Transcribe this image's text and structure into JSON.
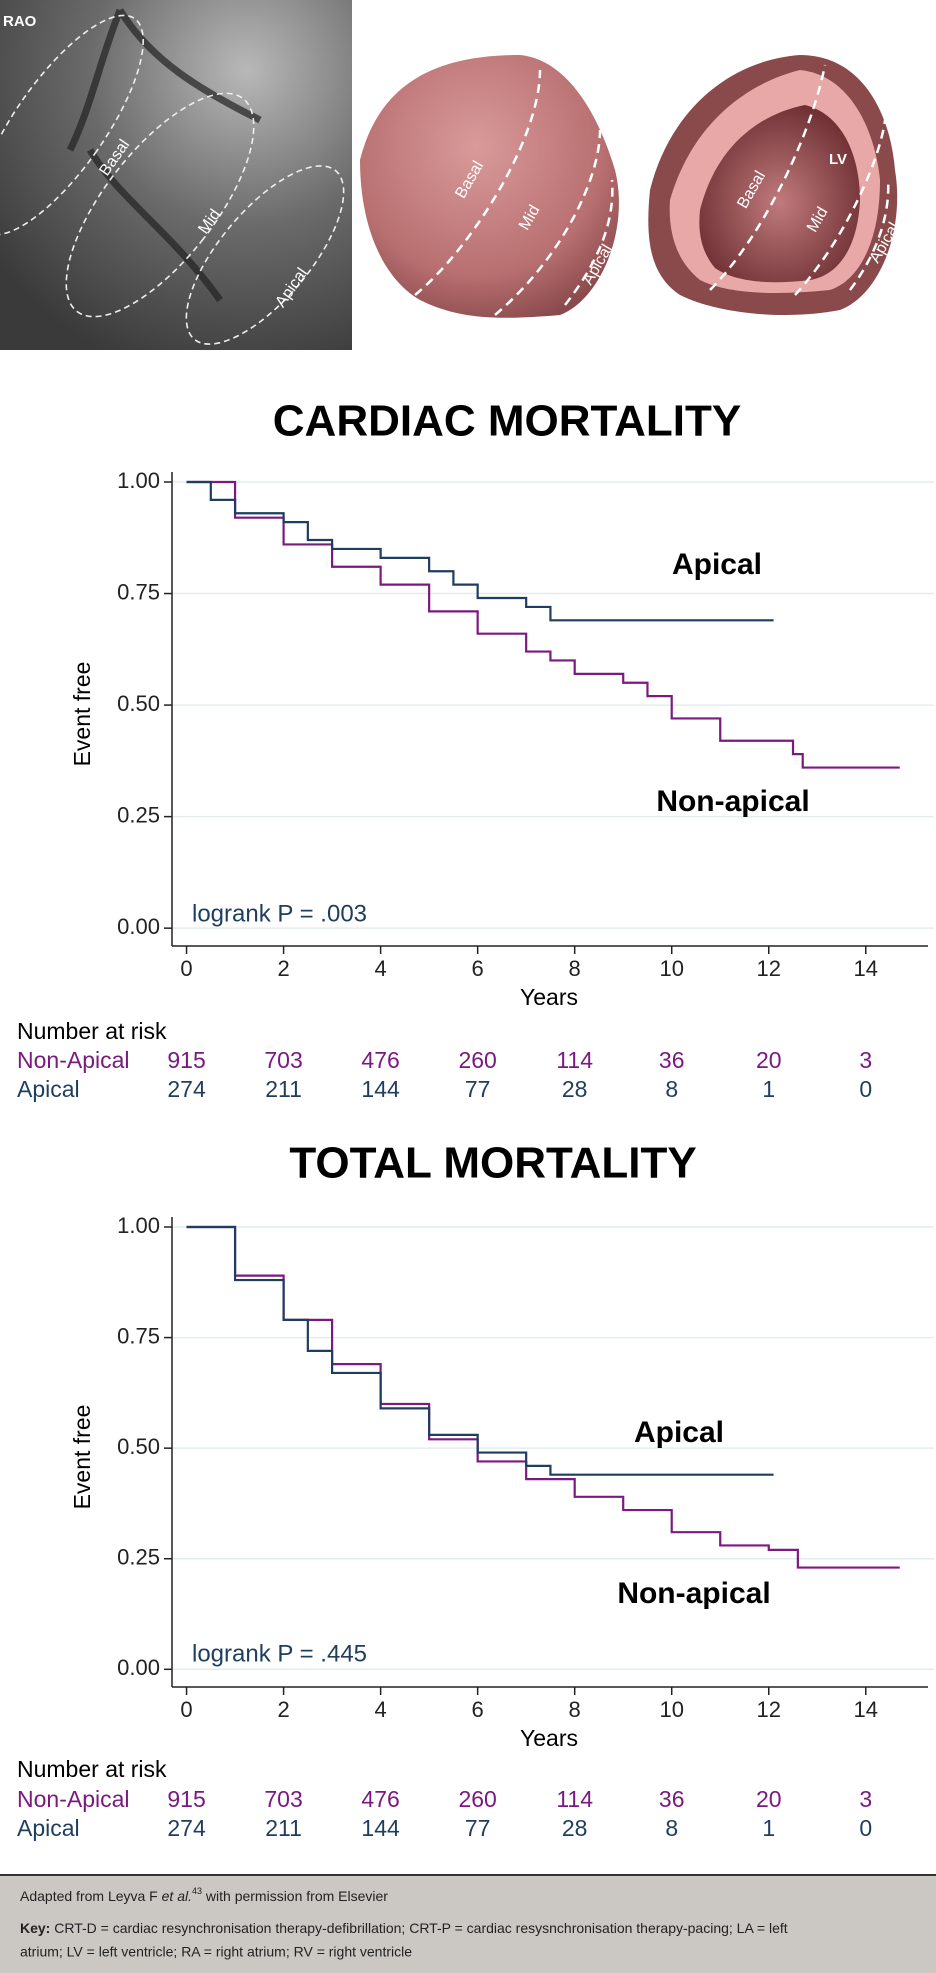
{
  "illustration": {
    "panels": [
      {
        "label": "RAO",
        "regions": [
          "Basal",
          "Mid",
          "Apical"
        ]
      },
      {
        "regions": [
          "Basal",
          "Mid",
          "Apical"
        ]
      },
      {
        "label": "LV",
        "regions": [
          "Basal",
          "Mid",
          "Apical"
        ]
      }
    ]
  },
  "chart_data": [
    {
      "type": "line",
      "title": "CARDIAC MORTALITY",
      "xlabel": "Years",
      "ylabel": "Event free",
      "xlim": [
        -0.3,
        15.2
      ],
      "xticks": [
        0,
        2,
        4,
        6,
        8,
        10,
        12,
        14
      ],
      "ylim": [
        -0.04,
        1
      ],
      "yticks": [
        {
          "value": 0,
          "label": "0.00"
        },
        {
          "value": 0.25,
          "label": "0.25"
        },
        {
          "value": 0.5,
          "label": "0.50"
        },
        {
          "value": 0.75,
          "label": "0.75"
        },
        {
          "value": 1,
          "label": "1.00"
        }
      ],
      "grid": true,
      "series": [
        {
          "name": "Non-Apical",
          "color": "#7a1a80",
          "x": [
            0,
            1,
            2,
            3,
            4,
            5,
            6,
            7,
            7.5,
            8,
            9,
            9.5,
            10,
            11,
            12,
            12.5,
            12.7,
            14.7
          ],
          "y": [
            1,
            0.92,
            0.86,
            0.81,
            0.77,
            0.71,
            0.66,
            0.62,
            0.6,
            0.57,
            0.55,
            0.52,
            0.47,
            0.42,
            0.42,
            0.39,
            0.36,
            0.36
          ]
        },
        {
          "name": "Apical",
          "color": "#1f3d5e",
          "x": [
            0,
            0.5,
            1,
            2,
            2.5,
            3,
            4,
            5,
            5.5,
            6,
            7,
            7.5,
            12.1
          ],
          "y": [
            1,
            0.96,
            0.93,
            0.91,
            0.87,
            0.85,
            0.83,
            0.8,
            0.77,
            0.74,
            0.72,
            0.69,
            0.69
          ]
        }
      ],
      "annotations": [
        "Apical",
        "Non-apical",
        "logrank P = .003"
      ],
      "risk_table": {
        "title": "Number at risk",
        "rows": [
          {
            "name": "Non-Apical",
            "values": [
              915,
              703,
              476,
              260,
              114,
              36,
              20,
              3
            ]
          },
          {
            "name": "Apical",
            "values": [
              274,
              211,
              144,
              77,
              28,
              8,
              1,
              0
            ]
          }
        ]
      }
    },
    {
      "type": "line",
      "title": "TOTAL MORTALITY",
      "xlabel": "Years",
      "ylabel": "Event free",
      "xlim": [
        -0.3,
        15.2
      ],
      "xticks": [
        0,
        2,
        4,
        6,
        8,
        10,
        12,
        14
      ],
      "ylim": [
        -0.04,
        1
      ],
      "yticks": [
        {
          "value": 0,
          "label": "0.00"
        },
        {
          "value": 0.25,
          "label": "0.25"
        },
        {
          "value": 0.5,
          "label": "0.50"
        },
        {
          "value": 0.75,
          "label": "0.75"
        },
        {
          "value": 1,
          "label": "1.00"
        }
      ],
      "grid": true,
      "series": [
        {
          "name": "Non-Apical",
          "color": "#7a1a80",
          "x": [
            0,
            1,
            2,
            3,
            4,
            5,
            6,
            7,
            8,
            9,
            10,
            11,
            12,
            12.6,
            14.7
          ],
          "y": [
            1,
            0.89,
            0.79,
            0.69,
            0.6,
            0.52,
            0.47,
            0.43,
            0.39,
            0.36,
            0.31,
            0.28,
            0.27,
            0.23,
            0.23
          ]
        },
        {
          "name": "Apical",
          "color": "#1f3d5e",
          "x": [
            0,
            1,
            2,
            2.5,
            3,
            4,
            5,
            6,
            7,
            7.5,
            12.1
          ],
          "y": [
            1,
            0.88,
            0.79,
            0.72,
            0.67,
            0.59,
            0.53,
            0.49,
            0.46,
            0.44,
            0.44
          ]
        }
      ],
      "annotations": [
        "Apical",
        "Non-apical",
        "logrank P = .445"
      ],
      "risk_table": {
        "title": "Number at risk",
        "rows": [
          {
            "name": "Non-Apical",
            "values": [
              915,
              703,
              476,
              260,
              114,
              36,
              20,
              3
            ]
          },
          {
            "name": "Apical",
            "values": [
              274,
              211,
              144,
              77,
              28,
              8,
              1,
              0
            ]
          }
        ]
      }
    }
  ],
  "footer": {
    "source": {
      "before": "Adapted from Leyva F ",
      "italic": "et al.",
      "sup": "43",
      "after": " with permission from Elsevier"
    },
    "key": {
      "label": "Key:",
      "lines": [
        " CRT-D = cardiac resynchronisation therapy-defibrillation; CRT-P = cardiac resysnchronisation therapy-pacing; LA = left",
        "atrium; LV = left ventricle; RA = right atrium; RV = right ventricle"
      ]
    }
  }
}
